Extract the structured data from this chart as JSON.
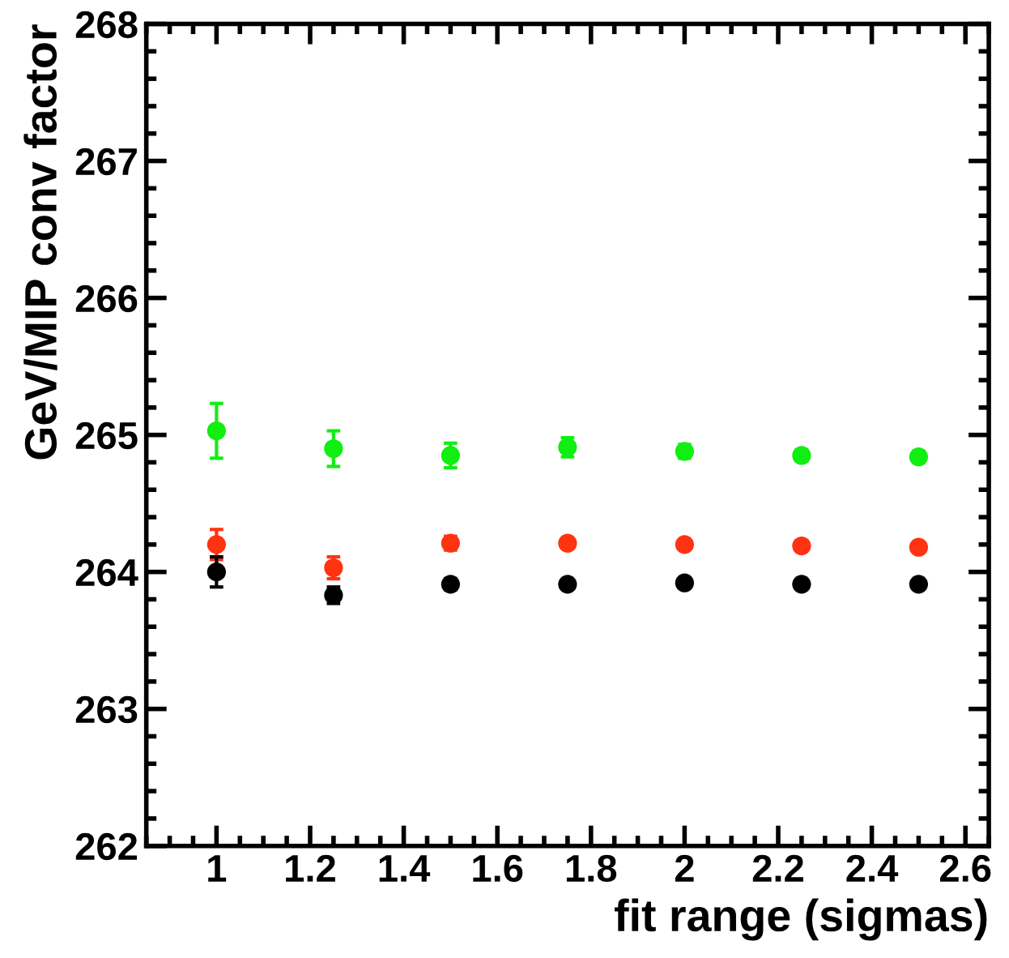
{
  "chart_data": {
    "type": "scatter",
    "xlabel": "fit range (sigmas)",
    "ylabel": "GeV/MIP conv factor",
    "x": [
      1,
      1.25,
      1.5,
      1.75,
      2,
      2.25,
      2.5
    ],
    "series": [
      {
        "color": "#11ee11",
        "values": [
          265.03,
          264.9,
          264.85,
          264.91,
          264.88,
          264.85,
          264.84
        ],
        "errors": [
          0.2,
          0.13,
          0.09,
          0.07,
          0.05,
          0.04,
          0.04
        ]
      },
      {
        "color": "#ff3311",
        "values": [
          264.2,
          264.03,
          264.21,
          264.21,
          264.2,
          264.19,
          264.18
        ],
        "errors": [
          0.11,
          0.08,
          0.05,
          0.03,
          0.02,
          0.02,
          0.02
        ]
      },
      {
        "color": "#000000",
        "values": [
          264.0,
          263.83,
          263.91,
          263.91,
          263.92,
          263.91,
          263.91
        ],
        "errors": [
          0.11,
          0.06,
          0.04,
          0.02,
          0.02,
          0.02,
          0.02
        ]
      }
    ],
    "xlim": [
      0.85,
      2.65
    ],
    "xticks": [
      1,
      1.2,
      1.4,
      1.6,
      1.8,
      2,
      2.2,
      2.4,
      2.6
    ],
    "ylim": [
      262,
      268
    ],
    "yticks": [
      262,
      263,
      264,
      265,
      266,
      267,
      268
    ],
    "marker": "circle",
    "legend": false,
    "grid": false
  }
}
